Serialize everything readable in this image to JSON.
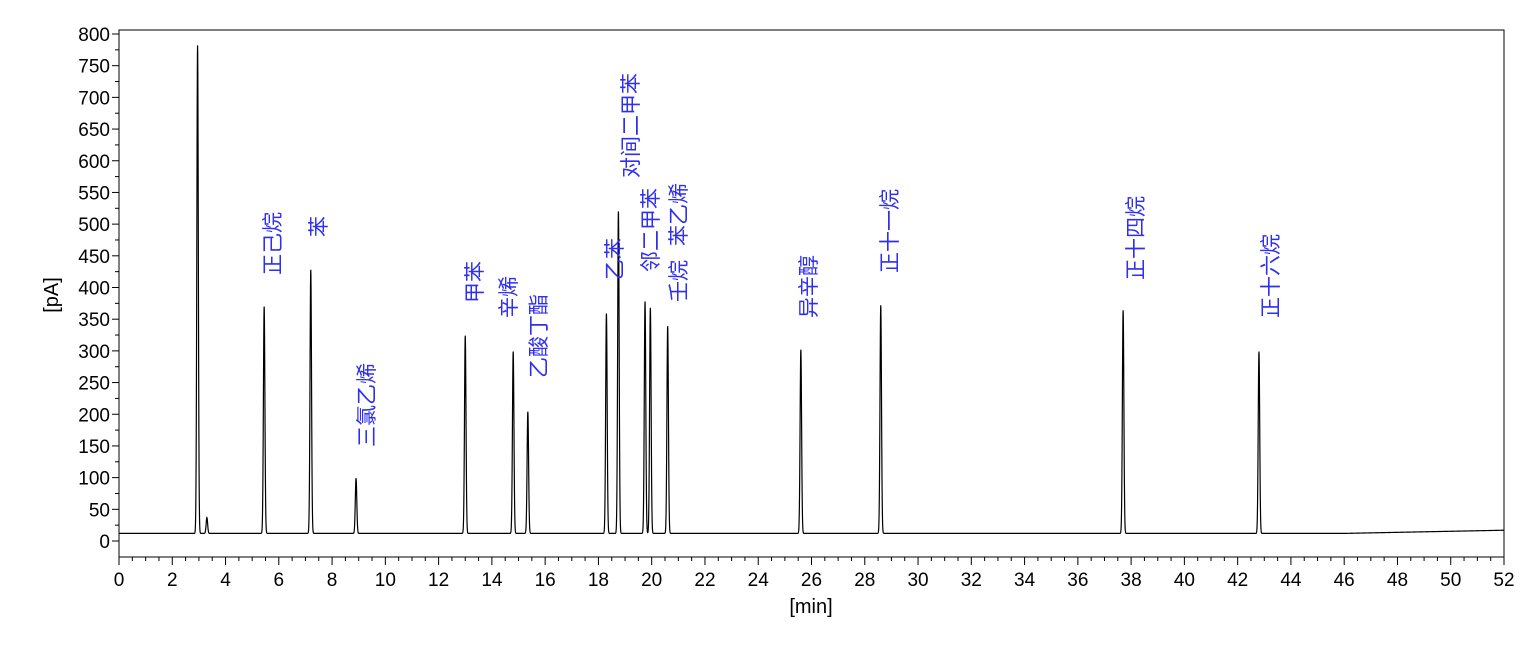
{
  "chart_data": {
    "type": "line",
    "xlabel": "[min]",
    "ylabel": "[pA]",
    "xlim": [
      0,
      52
    ],
    "ylim": [
      -25,
      810
    ],
    "xticks": [
      0,
      2,
      4,
      6,
      8,
      10,
      12,
      14,
      16,
      18,
      20,
      22,
      24,
      26,
      28,
      30,
      32,
      34,
      36,
      38,
      40,
      42,
      44,
      46,
      48,
      50,
      52
    ],
    "yticks": [
      0,
      50,
      100,
      150,
      200,
      250,
      300,
      350,
      400,
      450,
      500,
      550,
      600,
      650,
      700,
      750,
      800
    ],
    "grid": false,
    "baseline": 12,
    "baseline_end": 17,
    "line_color": "#000000",
    "label_color": "#2f2ff0",
    "peaks": [
      {
        "rt": 2.95,
        "height": 770,
        "label": ""
      },
      {
        "rt": 3.3,
        "height": 25,
        "label": ""
      },
      {
        "rt": 5.45,
        "height": 358,
        "label": "正己烷"
      },
      {
        "rt": 7.2,
        "height": 416,
        "label": "苯"
      },
      {
        "rt": 8.9,
        "height": 87,
        "label": "三氯乙烯"
      },
      {
        "rt": 13.0,
        "height": 312,
        "label": "甲苯"
      },
      {
        "rt": 14.8,
        "height": 287,
        "label": "辛烯"
      },
      {
        "rt": 15.35,
        "height": 192,
        "label": "乙酸丁酯"
      },
      {
        "rt": 18.3,
        "height": 347,
        "label": "乙苯"
      },
      {
        "rt": 18.75,
        "height": 508,
        "label": "对间二甲苯"
      },
      {
        "rt": 19.75,
        "height": 366,
        "label": "邻二甲苯"
      },
      {
        "rt": 19.95,
        "height": 356,
        "label": "苯乙烯"
      },
      {
        "rt": 20.6,
        "height": 327,
        "label": "壬烷"
      },
      {
        "rt": 25.6,
        "height": 290,
        "label": "异辛醇"
      },
      {
        "rt": 28.6,
        "height": 360,
        "label": "正十一烷"
      },
      {
        "rt": 37.7,
        "height": 352,
        "label": "正十四烷"
      },
      {
        "rt": 42.8,
        "height": 287,
        "label": "正十六烷"
      }
    ]
  }
}
